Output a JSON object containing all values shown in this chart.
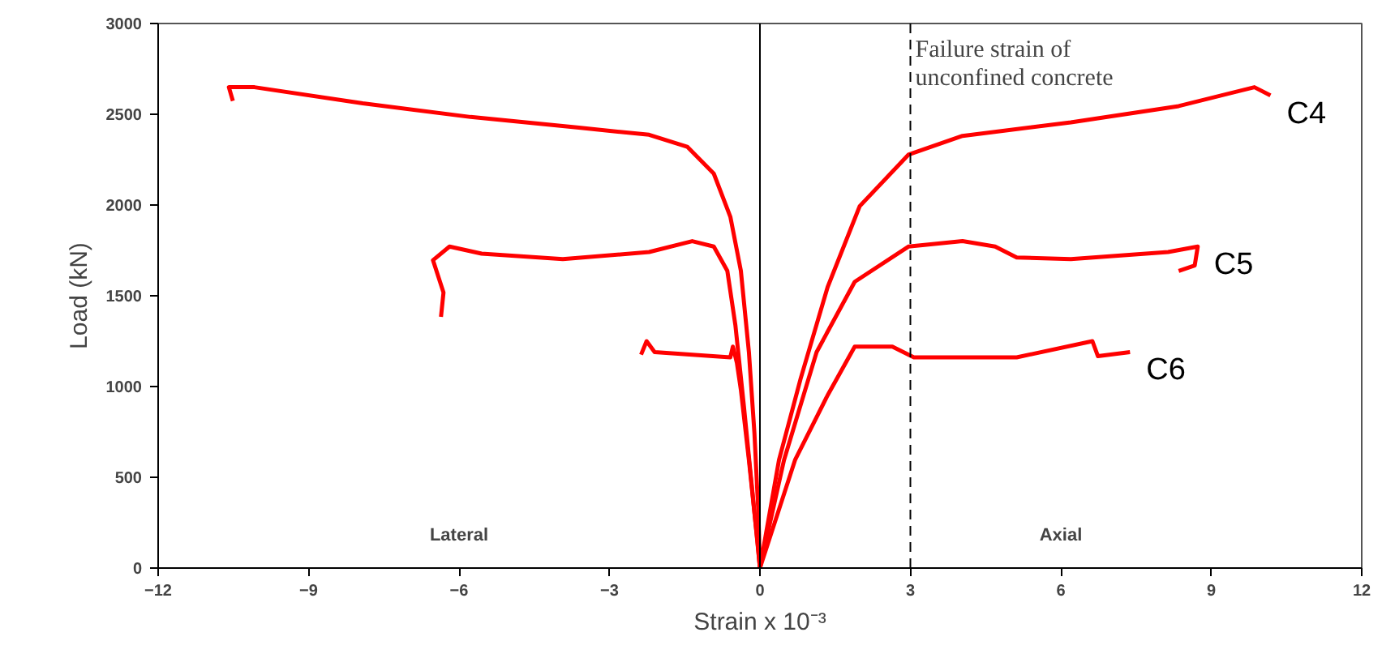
{
  "chart_data": {
    "type": "line",
    "xlabel": "Strain x 10⁻³",
    "ylabel": "Load (kN)",
    "xlim": [
      -12,
      12
    ],
    "xticks": [
      -12,
      -9,
      -6,
      -3,
      0,
      3,
      6,
      9,
      12
    ],
    "ylim": [
      0,
      3000
    ],
    "yticks": [
      0,
      500,
      1000,
      1500,
      2000,
      2500,
      3000
    ],
    "grid": false,
    "legend": false,
    "marker": "none",
    "line_style": "solid",
    "series": [
      {
        "name": "C4",
        "color": "#ff0000",
        "x": [
          -10.51,
          -10.59,
          -10.08,
          -7.92,
          -5.77,
          -3.61,
          -2.21,
          -1.45,
          -0.92,
          -0.59,
          -0.38,
          -0.22,
          -0.11,
          -0.03,
          0,
          0.38,
          0.81,
          1.35,
          1.99,
          2.96,
          4.04,
          6.2,
          8.35,
          9.86,
          10.18
        ],
        "values": [
          2574,
          2649,
          2649,
          2560,
          2485,
          2426,
          2387,
          2321,
          2173,
          1935,
          1637,
          1190,
          744,
          298,
          0,
          595,
          1042,
          1548,
          1994,
          2277,
          2381,
          2455,
          2545,
          2649,
          2604
        ]
      },
      {
        "name": "C5",
        "color": "#ff0000",
        "x": [
          -6.36,
          -6.31,
          -6.52,
          -6.19,
          -5.55,
          -3.93,
          -2.21,
          -1.35,
          -0.92,
          -0.65,
          -0.49,
          -0.32,
          -0.16,
          0,
          0.48,
          1.13,
          1.89,
          2.96,
          4.04,
          4.69,
          5.12,
          6.2,
          8.14,
          8.73,
          8.67,
          8.35
        ],
        "values": [
          1384,
          1518,
          1696,
          1771,
          1732,
          1702,
          1741,
          1801,
          1771,
          1637,
          1339,
          893,
          446,
          0,
          595,
          1190,
          1577,
          1771,
          1801,
          1771,
          1711,
          1702,
          1741,
          1771,
          1667,
          1637
        ]
      },
      {
        "name": "C6",
        "color": "#ff0000",
        "x": [
          -2.37,
          -2.26,
          -2.1,
          -0.59,
          -0.54,
          -0.46,
          -0.38,
          -0.22,
          -0.05,
          0,
          0.7,
          1.35,
          1.89,
          2.64,
          3.07,
          5.12,
          6.63,
          6.74,
          7.38
        ],
        "values": [
          1176,
          1250,
          1190,
          1161,
          1220,
          1131,
          982,
          595,
          149,
          0,
          595,
          952,
          1220,
          1220,
          1161,
          1161,
          1250,
          1167,
          1190
        ]
      }
    ],
    "ref_lines": [
      {
        "axis": "x",
        "value": 0,
        "color": "#000000",
        "line_style": "solid"
      },
      {
        "axis": "x",
        "value": 3,
        "label": "Failure strain of\nunconfined concrete",
        "color": "#000000",
        "line_style": "dashed"
      }
    ],
    "annotations": [
      "Lateral",
      "Axial"
    ]
  }
}
